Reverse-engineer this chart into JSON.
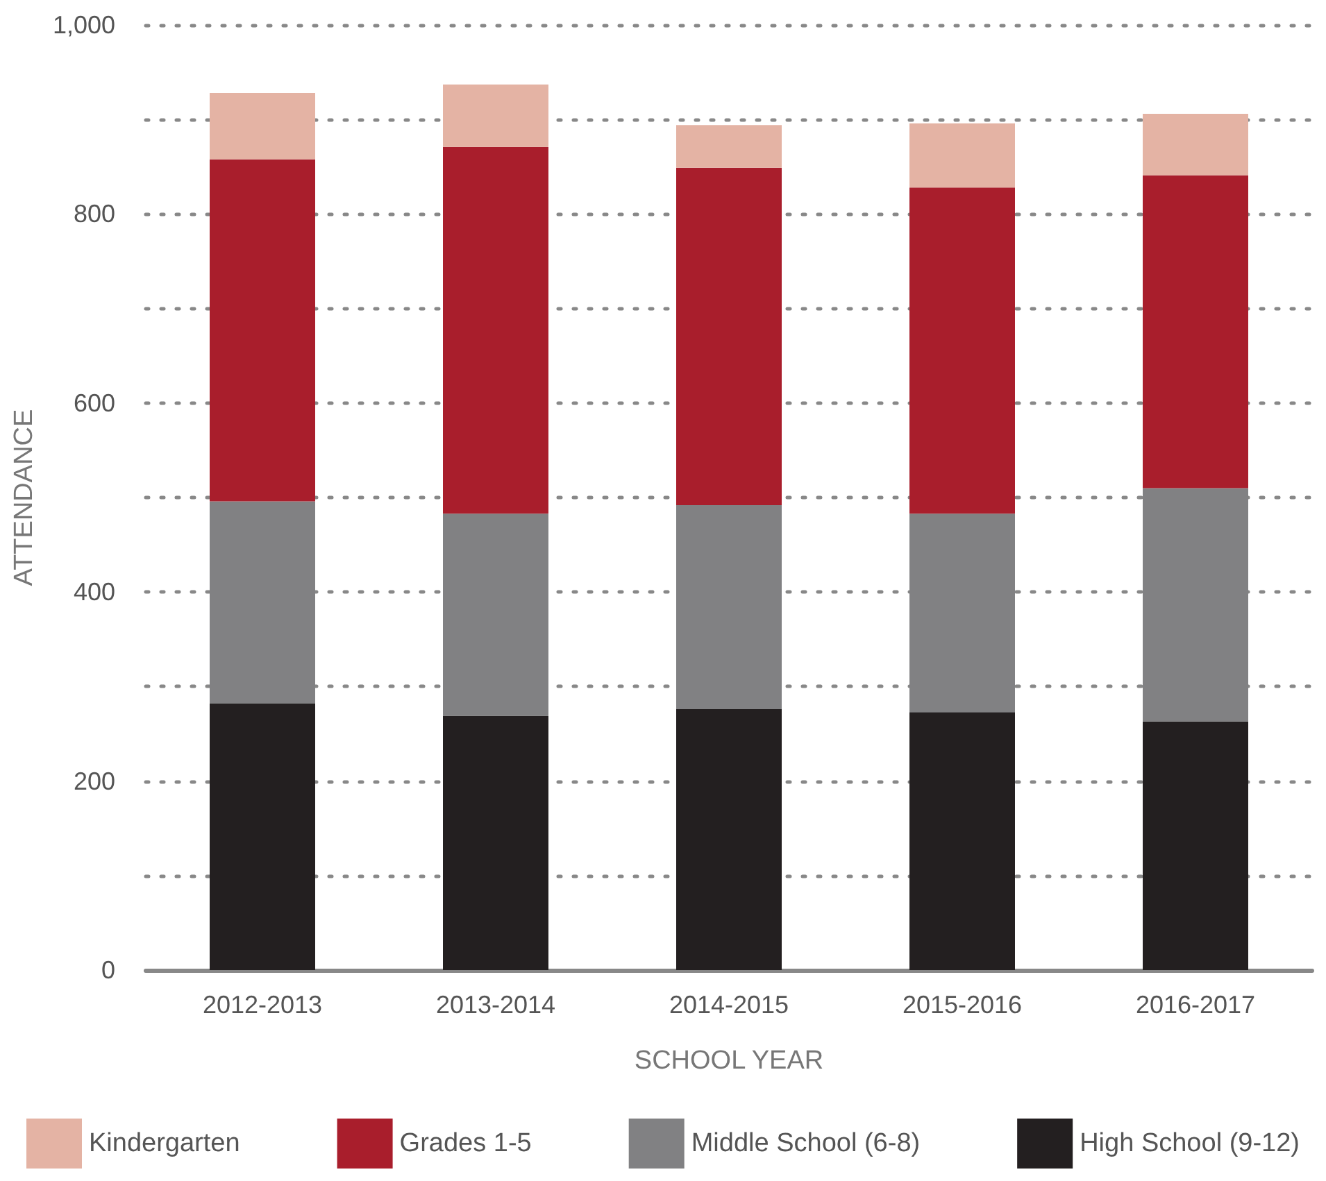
{
  "chart_data": {
    "type": "bar",
    "stacked": true,
    "xlabel": "SCHOOL YEAR",
    "ylabel": "ATTENDANCE",
    "categories": [
      "2012-2013",
      "2013-2014",
      "2014-2015",
      "2015-2016",
      "2016-2017"
    ],
    "series": [
      {
        "name": "High School (9-12)",
        "color": "#231f20",
        "values": [
          282,
          269,
          276,
          273,
          263
        ]
      },
      {
        "name": "Middle School (6-8)",
        "color": "#818183",
        "values": [
          214,
          214,
          216,
          210,
          247
        ]
      },
      {
        "name": "Grades 1-5",
        "color": "#a91e2c",
        "values": [
          362,
          388,
          357,
          345,
          331
        ]
      },
      {
        "name": "Kindergarten",
        "color": "#e4b3a4",
        "values": [
          70,
          66,
          45,
          68,
          65
        ]
      }
    ],
    "ylim": [
      0,
      1000
    ],
    "yticks": [
      0,
      {
        "value": 100,
        "label": null
      },
      200,
      {
        "value": 300,
        "label": null
      },
      400,
      {
        "value": 500,
        "label": null
      },
      600,
      {
        "value": 700,
        "label": null
      },
      800,
      {
        "value": 900,
        "label": null
      },
      {
        "value": 1000,
        "label": "1,000"
      }
    ],
    "grid": "y",
    "legend": "bottom"
  }
}
